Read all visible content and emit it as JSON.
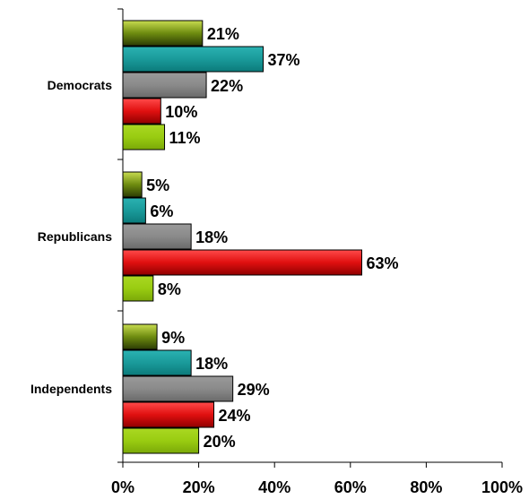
{
  "chart_data": {
    "type": "bar",
    "orientation": "horizontal",
    "categories": [
      "Democrats",
      "Republicans",
      "Independents"
    ],
    "series": [
      {
        "color": "#6e8c10",
        "values": [
          21,
          5,
          9
        ]
      },
      {
        "color": "#1a9a9a",
        "values": [
          37,
          6,
          18
        ]
      },
      {
        "color": "#8a8a8a",
        "values": [
          22,
          18,
          29
        ]
      },
      {
        "color": "#e01010",
        "values": [
          10,
          63,
          24
        ]
      },
      {
        "color": "#99cc11",
        "values": [
          11,
          8,
          20
        ]
      }
    ],
    "data_labels": [
      [
        "21%",
        "5%",
        "9%"
      ],
      [
        "37%",
        "6%",
        "18%"
      ],
      [
        "22%",
        "18%",
        "29%"
      ],
      [
        "10%",
        "63%",
        "24%"
      ],
      [
        "11%",
        "8%",
        "20%"
      ]
    ],
    "x_ticks": [
      "0%",
      "20%",
      "40%",
      "60%",
      "80%",
      "100%"
    ],
    "xlim": [
      0,
      100
    ],
    "title": "",
    "xlabel": "",
    "ylabel": "",
    "legend": "none",
    "grid": false
  }
}
